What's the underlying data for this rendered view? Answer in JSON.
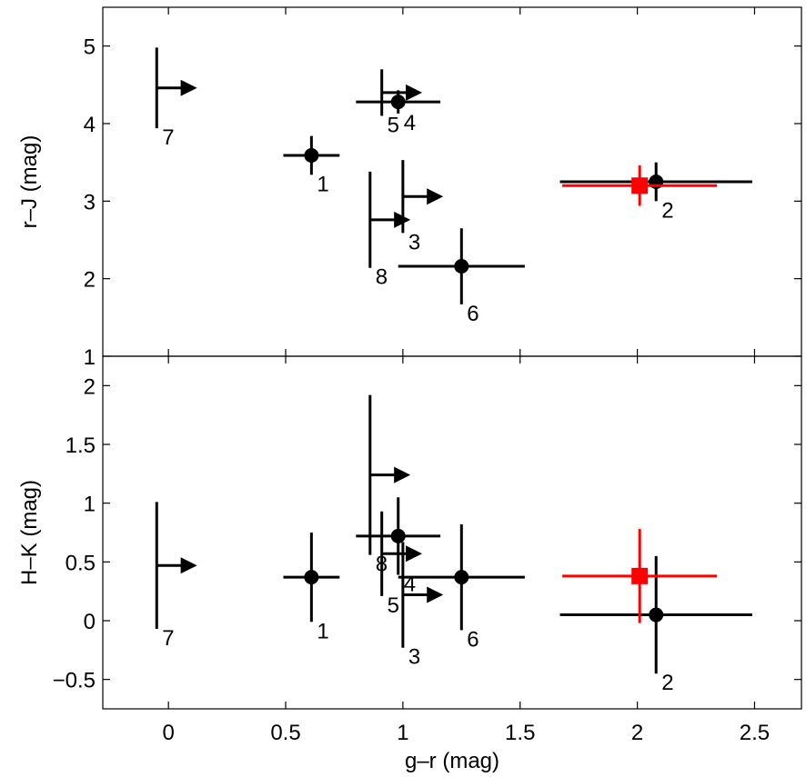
{
  "chart_data": [
    {
      "type": "scatter",
      "panel": "top",
      "xlabel": "g–r  (mag)",
      "ylabel": "r–J  (mag)",
      "xlim": [
        -0.28,
        2.7
      ],
      "ylim": [
        1,
        5.5
      ],
      "xticks": [
        0,
        0.5,
        1,
        1.5,
        2,
        2.5
      ],
      "xtick_labels": [
        "0",
        "0.5",
        "1",
        "1.5",
        "2",
        "2.5"
      ],
      "yticks": [
        1,
        2,
        3,
        4,
        5
      ],
      "ytick_labels": [
        "1",
        "2",
        "3",
        "4",
        "5"
      ],
      "points": [
        {
          "label": "1",
          "x": 0.61,
          "y": 3.59,
          "xerr": [
            0.12,
            0.12
          ],
          "yerr": [
            0.25,
            0.25
          ],
          "kind": "point"
        },
        {
          "label": "2",
          "x": 2.08,
          "y": 3.25,
          "xerr": [
            0.41,
            0.41
          ],
          "yerr": [
            0.25,
            0.25
          ],
          "kind": "point"
        },
        {
          "label": "3",
          "x": 1.0,
          "y": 3.06,
          "yerr": [
            0.47,
            0.47
          ],
          "kind": "limit"
        },
        {
          "label": "4",
          "x": 0.98,
          "y": 4.28,
          "xerr": [
            0.18,
            0.18
          ],
          "yerr": [
            0.15,
            0.15
          ],
          "kind": "point"
        },
        {
          "label": "5",
          "x": 0.91,
          "y": 4.4,
          "yerr": [
            0.3,
            0.3
          ],
          "kind": "limit"
        },
        {
          "label": "6",
          "x": 1.25,
          "y": 2.16,
          "xerr": [
            0.27,
            0.27
          ],
          "yerr": [
            0.49,
            0.49
          ],
          "kind": "point"
        },
        {
          "label": "7",
          "x": -0.05,
          "y": 4.46,
          "yerr": [
            0.52,
            0.52
          ],
          "kind": "limit"
        },
        {
          "label": "8",
          "x": 0.86,
          "y": 2.76,
          "yerr": [
            0.62,
            0.62
          ],
          "kind": "limit"
        }
      ],
      "highlight": {
        "x": 2.01,
        "y": 3.2,
        "xerr": [
          0.33,
          0.33
        ],
        "yerr": [
          0.26,
          0.26
        ],
        "color": "#ff0000"
      }
    },
    {
      "type": "scatter",
      "panel": "bottom",
      "xlabel": "g–r  (mag)",
      "ylabel": "H–K  (mag)",
      "xlim": [
        -0.28,
        2.7
      ],
      "ylim": [
        -0.75,
        2.25
      ],
      "xticks": [
        0,
        0.5,
        1,
        1.5,
        2,
        2.5
      ],
      "xtick_labels": [
        "0",
        "0.5",
        "1",
        "1.5",
        "2",
        "2.5"
      ],
      "yticks": [
        -0.5,
        0,
        0.5,
        1,
        1.5,
        2
      ],
      "ytick_labels": [
        "−0.5",
        "0",
        "0.5",
        "1",
        "1.5",
        "2"
      ],
      "points": [
        {
          "label": "1",
          "x": 0.61,
          "y": 0.37,
          "xerr": [
            0.12,
            0.12
          ],
          "yerr": [
            0.38,
            0.38
          ],
          "kind": "point"
        },
        {
          "label": "2",
          "x": 2.08,
          "y": 0.05,
          "xerr": [
            0.41,
            0.41
          ],
          "yerr": [
            0.5,
            0.5
          ],
          "kind": "point"
        },
        {
          "label": "3",
          "x": 1.0,
          "y": 0.22,
          "yerr": [
            0.45,
            0.45
          ],
          "kind": "limit"
        },
        {
          "label": "4",
          "x": 0.98,
          "y": 0.72,
          "xerr": [
            0.18,
            0.18
          ],
          "yerr": [
            0.33,
            0.33
          ],
          "kind": "point"
        },
        {
          "label": "5",
          "x": 0.91,
          "y": 0.57,
          "yerr": [
            0.36,
            0.36
          ],
          "kind": "limit"
        },
        {
          "label": "6",
          "x": 1.25,
          "y": 0.37,
          "xerr": [
            0.27,
            0.27
          ],
          "yerr": [
            0.45,
            0.45
          ],
          "kind": "point"
        },
        {
          "label": "7",
          "x": -0.05,
          "y": 0.47,
          "yerr": [
            0.54,
            0.54
          ],
          "kind": "limit"
        },
        {
          "label": "8",
          "x": 0.86,
          "y": 1.24,
          "yerr": [
            0.68,
            0.68
          ],
          "kind": "limit"
        }
      ],
      "highlight": {
        "x": 2.01,
        "y": 0.38,
        "xerr": [
          0.33,
          0.33
        ],
        "yerr": [
          0.4,
          0.4
        ],
        "color": "#ff0000"
      }
    }
  ]
}
